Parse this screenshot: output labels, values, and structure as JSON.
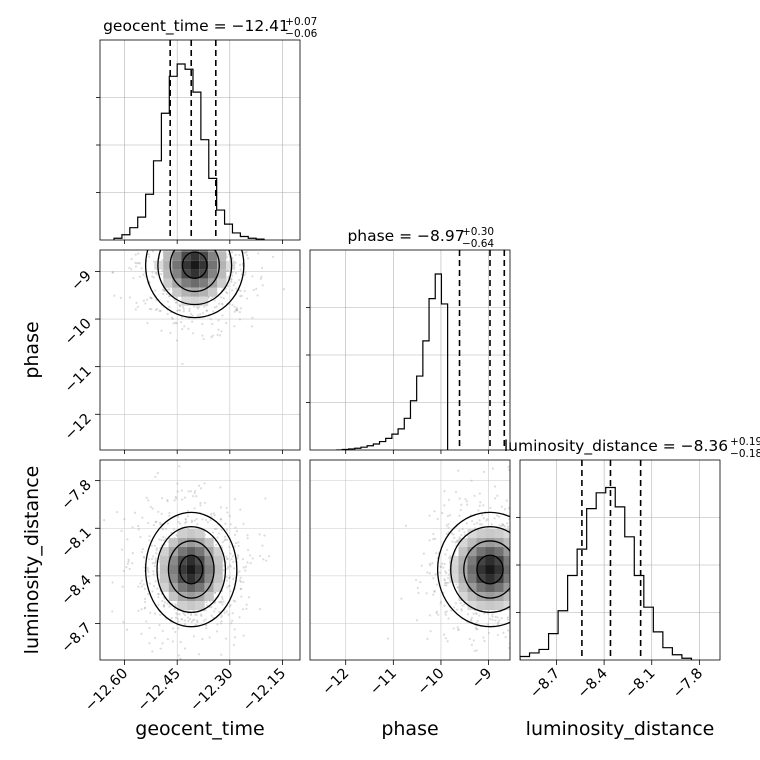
{
  "chart_data": {
    "type": "corner",
    "parameters": [
      "geocent_time",
      "phase",
      "luminosity_distance"
    ],
    "titles": [
      {
        "param": "geocent_time",
        "text": "geocent_time = −12.41",
        "sup": "+0.07",
        "sub": "−0.06",
        "median": -12.41,
        "plus": 0.07,
        "minus": 0.06
      },
      {
        "param": "phase",
        "text": "phase = −8.97",
        "sup": "+0.30",
        "sub": "−0.64",
        "median": -8.97,
        "plus": 0.3,
        "minus": 0.64
      },
      {
        "param": "luminosity_distance",
        "text": "luminosity_distance = −8.36",
        "sup": "+0.19",
        "sub": "−0.18",
        "median": -8.36,
        "plus": 0.19,
        "minus": 0.18
      }
    ],
    "axes": {
      "geocent_time": {
        "range": [
          -12.67,
          -12.1
        ],
        "ticks": [
          -12.6,
          -12.45,
          -12.3,
          -12.15
        ],
        "tick_labels": [
          "−12.60",
          "−12.45",
          "−12.30",
          "−12.15"
        ],
        "label": "geocent_time"
      },
      "phase": {
        "range": [
          -12.75,
          -8.55
        ],
        "ticks": [
          -12,
          -11,
          -10,
          -9
        ],
        "tick_labels": [
          "−12",
          "−11",
          "−10",
          "−9"
        ],
        "label": "phase"
      },
      "luminosity_distance": {
        "range": [
          -8.93,
          -7.67
        ],
        "ticks": [
          -8.7,
          -8.4,
          -8.1,
          -7.8
        ],
        "tick_labels": [
          "−8.7",
          "−8.4",
          "−8.1",
          "−7.8"
        ],
        "label": "luminosity_distance"
      }
    },
    "histograms": {
      "geocent_time": {
        "edges_start": -12.63,
        "bin_width": 0.0225,
        "counts": [
          0.01,
          0.03,
          0.07,
          0.13,
          0.26,
          0.45,
          0.72,
          0.93,
          1.0,
          0.97,
          0.84,
          0.57,
          0.35,
          0.17,
          0.09,
          0.04,
          0.02,
          0.01,
          0.005
        ]
      },
      "phase": {
        "edges_start": -12.2,
        "bin_width": 0.13,
        "counts": [
          0.0,
          0.003,
          0.006,
          0.01,
          0.016,
          0.024,
          0.034,
          0.048,
          0.066,
          0.09,
          0.12,
          0.18,
          0.28,
          0.42,
          0.62,
          0.86,
          1.0,
          0.83
        ]
      },
      "luminosity_distance": {
        "edges_start": -8.93,
        "bin_width": 0.06,
        "counts": [
          0.02,
          0.04,
          0.06,
          0.15,
          0.28,
          0.48,
          0.63,
          0.86,
          0.95,
          0.98,
          0.87,
          0.7,
          0.48,
          0.3,
          0.16,
          0.07,
          0.03,
          0.01
        ]
      }
    },
    "quantile_lines": {
      "geocent_time": [
        -12.47,
        -12.41,
        -12.34
      ],
      "phase": [
        -9.61,
        -8.97,
        -8.67
      ],
      "luminosity_distance": [
        -8.54,
        -8.36,
        -8.17
      ]
    },
    "joint": [
      {
        "x": "geocent_time",
        "y": "phase",
        "center": [
          -12.4,
          -8.87
        ],
        "spread": [
          0.07,
          0.55
        ],
        "contour_levels": 4,
        "grayscale_density": true
      },
      {
        "x": "geocent_time",
        "y": "luminosity_distance",
        "center": [
          -12.41,
          -8.36
        ],
        "spread": [
          0.065,
          0.18
        ],
        "contour_levels": 4,
        "grayscale_density": true
      },
      {
        "x": "phase",
        "y": "luminosity_distance",
        "center": [
          -8.97,
          -8.36
        ],
        "spread": [
          0.55,
          0.18
        ],
        "contour_levels": 4,
        "grayscale_density": true
      }
    ],
    "grid": true,
    "legend": "none"
  }
}
